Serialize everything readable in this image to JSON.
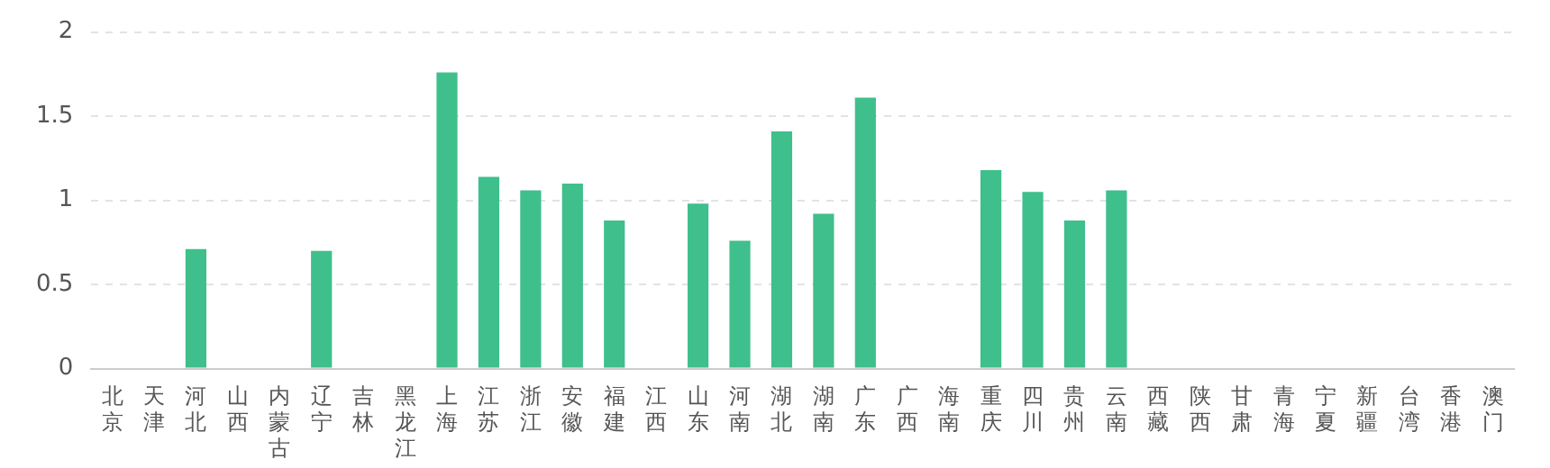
{
  "chart_data": {
    "type": "bar",
    "categories": [
      "北京",
      "天津",
      "河北",
      "山西",
      "内蒙古",
      "辽宁",
      "吉林",
      "黑龙江",
      "上海",
      "江苏",
      "浙江",
      "安徽",
      "福建",
      "江西",
      "山东",
      "河南",
      "湖北",
      "湖南",
      "广东",
      "广西",
      "海南",
      "重庆",
      "四川",
      "贵州",
      "云南",
      "西藏",
      "陕西",
      "甘肃",
      "青海",
      "宁夏",
      "新疆",
      "台湾",
      "香港",
      "澳门"
    ],
    "values": [
      null,
      null,
      0.71,
      null,
      null,
      0.7,
      null,
      null,
      1.76,
      1.14,
      1.06,
      1.1,
      0.88,
      null,
      0.98,
      0.76,
      1.41,
      0.92,
      1.61,
      null,
      null,
      1.18,
      1.05,
      0.88,
      1.06,
      null,
      null,
      null,
      null,
      null,
      null,
      null,
      null,
      null
    ],
    "color": "#3fbf8c",
    "ylim": [
      0,
      2
    ],
    "yticks": [
      0,
      0.5,
      1,
      1.5,
      2
    ],
    "grid": "y"
  }
}
